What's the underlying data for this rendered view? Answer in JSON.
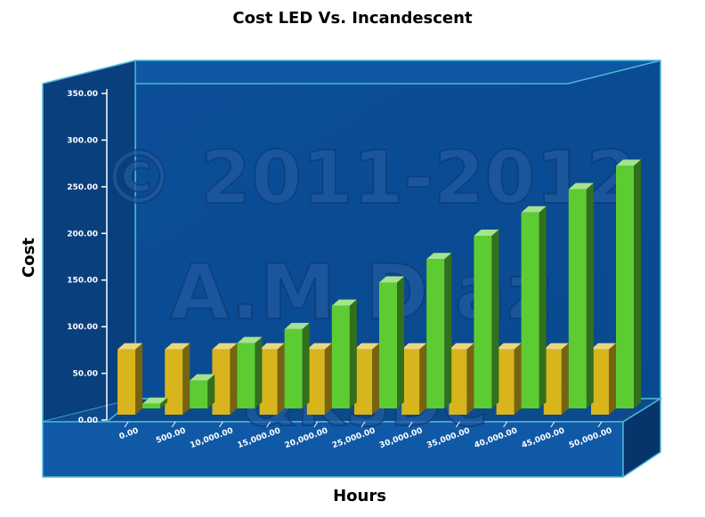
{
  "chart_data": {
    "type": "bar",
    "title": "Cost LED Vs. Incandescent",
    "xlabel": "Hours",
    "ylabel": "Cost",
    "ylim": [
      0,
      350
    ],
    "yticks": [
      "0.00",
      "50.00",
      "100.00",
      "150.00",
      "200.00",
      "250.00",
      "300.00",
      "350.00"
    ],
    "categories": [
      "0.00",
      "500.00",
      "10,000.00",
      "15,000.00",
      "20,000.00",
      "25,000.00",
      "30,000.00",
      "35,000.00",
      "40,000.00",
      "45,000.00",
      "50,000.00"
    ],
    "series": [
      {
        "name": "",
        "color": "#d8b51c",
        "values": [
          70,
          70,
          70,
          70,
          70,
          70,
          70,
          70,
          70,
          70,
          70
        ]
      },
      {
        "name": "",
        "color": "#5dcc33",
        "values": [
          5,
          30,
          70,
          85,
          110,
          135,
          160,
          185,
          210,
          235,
          260
        ]
      }
    ],
    "watermark": [
      "© 2011-2012",
      "A.M.Diaz",
      "&KSDC"
    ],
    "legend": "none",
    "grid": false
  }
}
